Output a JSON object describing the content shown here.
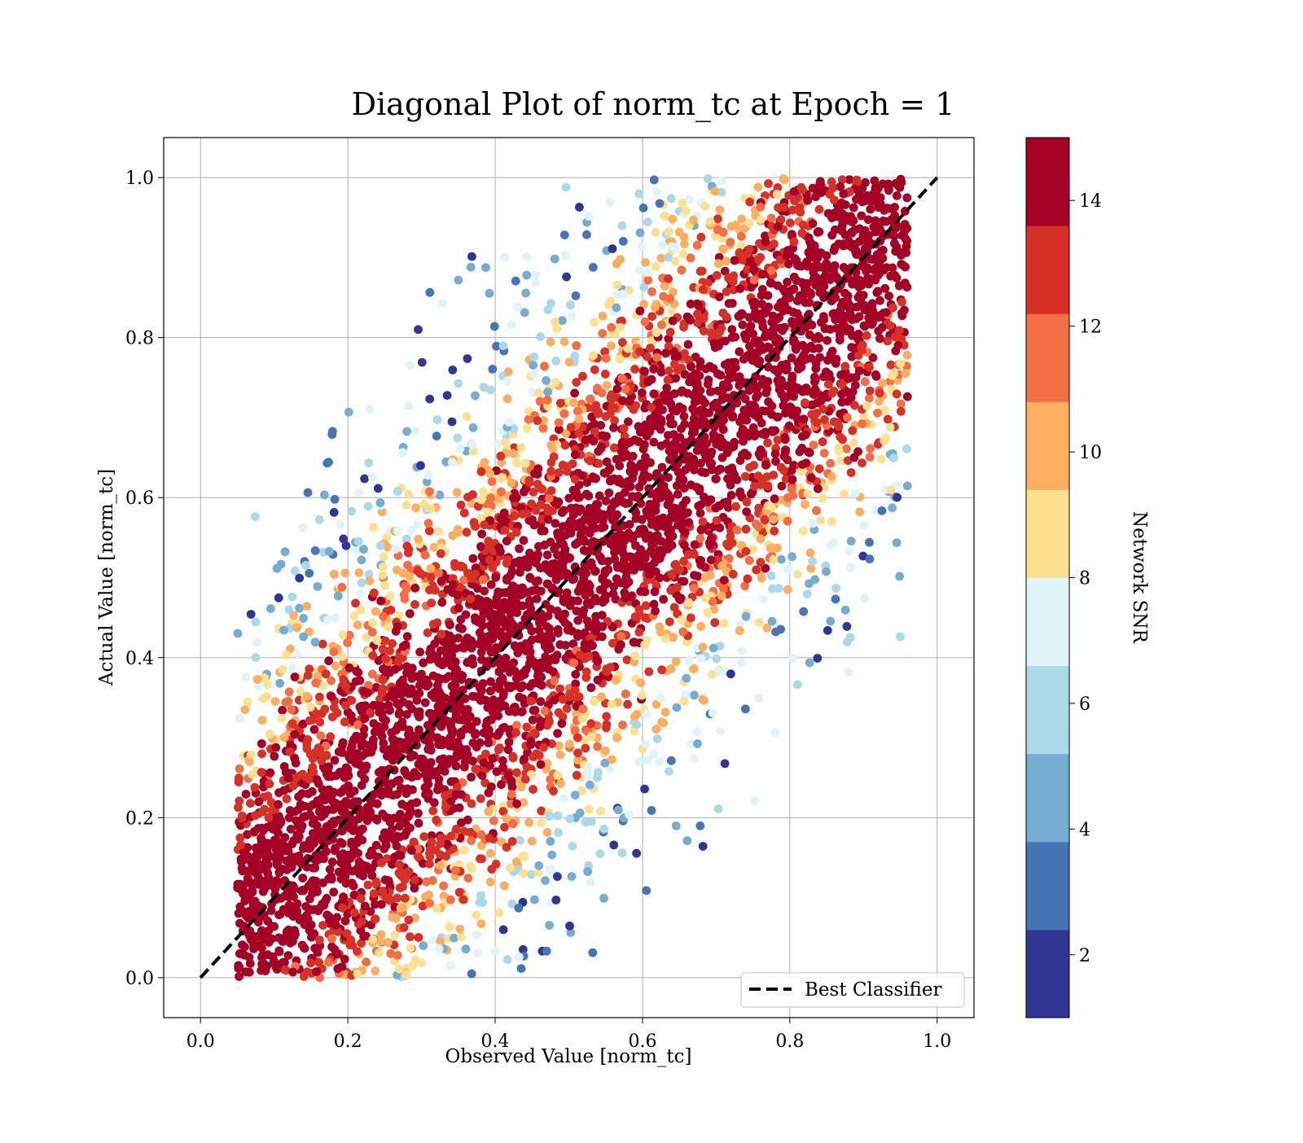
{
  "chart_data": {
    "type": "scatter",
    "title": "Diagonal Plot of norm_tc at Epoch = 1",
    "xlabel": "Observed Value [norm_tc]",
    "ylabel": "Actual Value [norm_tc]",
    "xlim": [
      -0.05,
      1.05
    ],
    "ylim": [
      -0.05,
      1.05
    ],
    "x_ticks": [
      "0.0",
      "0.2",
      "0.4",
      "0.6",
      "0.8",
      "1.0"
    ],
    "y_ticks": [
      "0.0",
      "0.2",
      "0.4",
      "0.6",
      "0.8",
      "1.0"
    ],
    "grid": true,
    "reference_line": {
      "label": "Best Classifier",
      "x": [
        0,
        1
      ],
      "y": [
        0,
        1
      ],
      "style": "dashed",
      "color": "#000000"
    },
    "legend": {
      "position": "lower-right",
      "entries": [
        "Best Classifier"
      ]
    },
    "colorbar": {
      "label": "Network SNR",
      "range": [
        1,
        15
      ],
      "ticks": [
        "2",
        "4",
        "6",
        "8",
        "10",
        "12",
        "14"
      ],
      "colors": [
        "#313695",
        "#4575b4",
        "#74add1",
        "#abd9e9",
        "#e0f3f8",
        "#fee090",
        "#fdae61",
        "#f46d43",
        "#d73027",
        "#a50026"
      ]
    },
    "density_description_bands": [
      {
        "offset_abs_max": 0.15,
        "dominant_snr": 14
      },
      {
        "offset_abs_max": 0.25,
        "dominant_snr": 11
      },
      {
        "offset_abs_max": 0.35,
        "dominant_snr": 7
      },
      {
        "offset_abs_max": 0.5,
        "dominant_snr": 3
      }
    ]
  }
}
